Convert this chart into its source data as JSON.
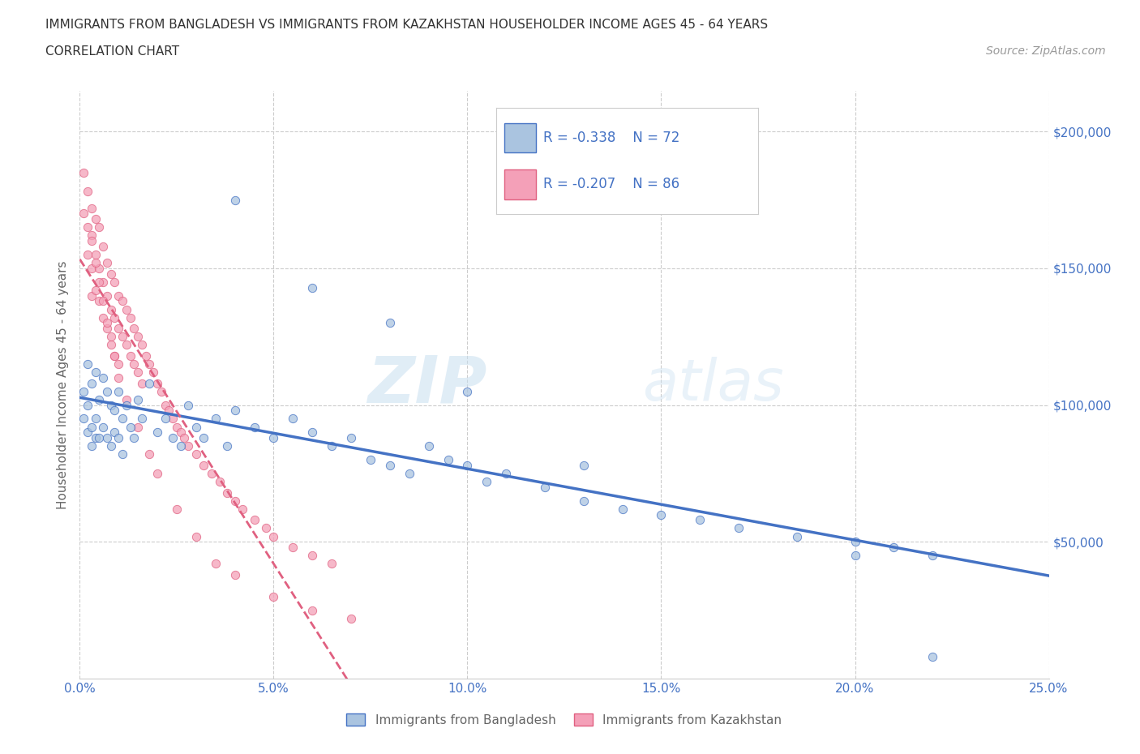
{
  "title_line1": "IMMIGRANTS FROM BANGLADESH VS IMMIGRANTS FROM KAZAKHSTAN HOUSEHOLDER INCOME AGES 45 - 64 YEARS",
  "title_line2": "CORRELATION CHART",
  "source_text": "Source: ZipAtlas.com",
  "ylabel": "Householder Income Ages 45 - 64 years",
  "xlim": [
    0.0,
    0.25
  ],
  "ylim": [
    0,
    215000
  ],
  "xtick_labels": [
    "0.0%",
    "5.0%",
    "10.0%",
    "15.0%",
    "20.0%",
    "25.0%"
  ],
  "xtick_values": [
    0.0,
    0.05,
    0.1,
    0.15,
    0.2,
    0.25
  ],
  "ytick_labels": [
    "$50,000",
    "$100,000",
    "$150,000",
    "$200,000"
  ],
  "ytick_values": [
    50000,
    100000,
    150000,
    200000
  ],
  "legend_r_bangladesh": "R = -0.338",
  "legend_n_bangladesh": "N = 72",
  "legend_r_kazakhstan": "R = -0.207",
  "legend_n_kazakhstan": "N = 86",
  "color_bangladesh": "#aac4e0",
  "color_kazakhstan": "#f4a0b8",
  "color_trendline_bangladesh": "#4472c4",
  "color_trendline_kazakhstan": "#e06080",
  "watermark_zip": "ZIP",
  "watermark_atlas": "atlas",
  "bangladesh_x": [
    0.001,
    0.001,
    0.002,
    0.002,
    0.002,
    0.003,
    0.003,
    0.003,
    0.004,
    0.004,
    0.004,
    0.005,
    0.005,
    0.006,
    0.006,
    0.007,
    0.007,
    0.008,
    0.008,
    0.009,
    0.009,
    0.01,
    0.01,
    0.011,
    0.011,
    0.012,
    0.013,
    0.014,
    0.015,
    0.016,
    0.018,
    0.02,
    0.022,
    0.024,
    0.026,
    0.028,
    0.03,
    0.032,
    0.035,
    0.038,
    0.04,
    0.045,
    0.05,
    0.055,
    0.06,
    0.065,
    0.07,
    0.075,
    0.08,
    0.085,
    0.09,
    0.095,
    0.1,
    0.105,
    0.11,
    0.12,
    0.13,
    0.14,
    0.15,
    0.16,
    0.17,
    0.185,
    0.2,
    0.21,
    0.22,
    0.04,
    0.06,
    0.08,
    0.1,
    0.13,
    0.2,
    0.22
  ],
  "bangladesh_y": [
    105000,
    95000,
    115000,
    100000,
    90000,
    108000,
    92000,
    85000,
    112000,
    95000,
    88000,
    102000,
    88000,
    110000,
    92000,
    105000,
    88000,
    100000,
    85000,
    98000,
    90000,
    105000,
    88000,
    95000,
    82000,
    100000,
    92000,
    88000,
    102000,
    95000,
    108000,
    90000,
    95000,
    88000,
    85000,
    100000,
    92000,
    88000,
    95000,
    85000,
    98000,
    92000,
    88000,
    95000,
    90000,
    85000,
    88000,
    80000,
    78000,
    75000,
    85000,
    80000,
    78000,
    72000,
    75000,
    70000,
    65000,
    62000,
    60000,
    58000,
    55000,
    52000,
    50000,
    48000,
    45000,
    175000,
    143000,
    130000,
    105000,
    78000,
    45000,
    8000
  ],
  "kazakhstan_x": [
    0.001,
    0.001,
    0.002,
    0.002,
    0.002,
    0.003,
    0.003,
    0.003,
    0.003,
    0.004,
    0.004,
    0.004,
    0.005,
    0.005,
    0.005,
    0.006,
    0.006,
    0.006,
    0.007,
    0.007,
    0.007,
    0.008,
    0.008,
    0.008,
    0.009,
    0.009,
    0.009,
    0.01,
    0.01,
    0.01,
    0.011,
    0.011,
    0.012,
    0.012,
    0.013,
    0.013,
    0.014,
    0.014,
    0.015,
    0.015,
    0.016,
    0.016,
    0.017,
    0.018,
    0.019,
    0.02,
    0.021,
    0.022,
    0.023,
    0.024,
    0.025,
    0.026,
    0.027,
    0.028,
    0.03,
    0.032,
    0.034,
    0.036,
    0.038,
    0.04,
    0.042,
    0.045,
    0.048,
    0.05,
    0.055,
    0.06,
    0.065,
    0.003,
    0.004,
    0.005,
    0.006,
    0.007,
    0.008,
    0.009,
    0.01,
    0.012,
    0.015,
    0.018,
    0.02,
    0.025,
    0.03,
    0.035,
    0.04,
    0.05,
    0.06,
    0.07
  ],
  "kazakhstan_y": [
    185000,
    170000,
    178000,
    165000,
    155000,
    172000,
    162000,
    150000,
    140000,
    168000,
    155000,
    142000,
    165000,
    150000,
    138000,
    158000,
    145000,
    132000,
    152000,
    140000,
    128000,
    148000,
    135000,
    122000,
    145000,
    132000,
    118000,
    140000,
    128000,
    115000,
    138000,
    125000,
    135000,
    122000,
    132000,
    118000,
    128000,
    115000,
    125000,
    112000,
    122000,
    108000,
    118000,
    115000,
    112000,
    108000,
    105000,
    100000,
    98000,
    95000,
    92000,
    90000,
    88000,
    85000,
    82000,
    78000,
    75000,
    72000,
    68000,
    65000,
    62000,
    58000,
    55000,
    52000,
    48000,
    45000,
    42000,
    160000,
    152000,
    145000,
    138000,
    130000,
    125000,
    118000,
    110000,
    102000,
    92000,
    82000,
    75000,
    62000,
    52000,
    42000,
    38000,
    30000,
    25000,
    22000
  ]
}
